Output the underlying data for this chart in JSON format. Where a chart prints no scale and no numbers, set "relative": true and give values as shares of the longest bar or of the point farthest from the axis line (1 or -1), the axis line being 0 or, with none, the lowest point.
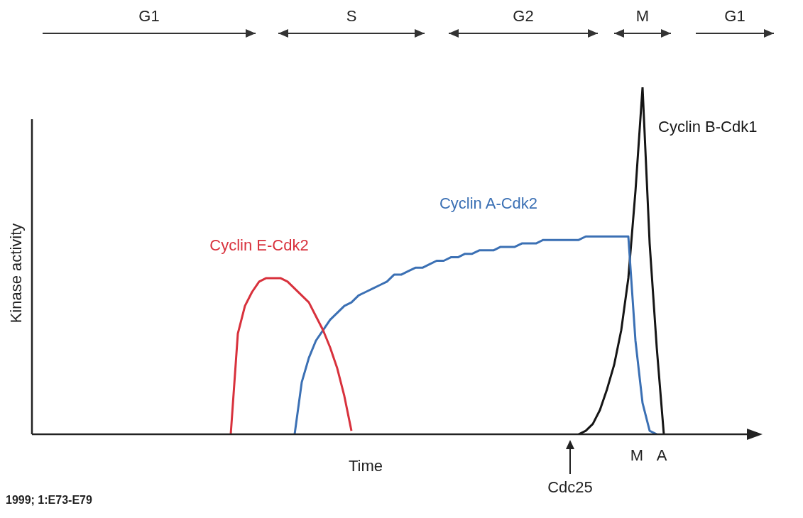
{
  "chart_data": {
    "type": "line",
    "relative": true,
    "xlabel": "Time",
    "ylabel": "Kinase activity",
    "legend": false,
    "tick_labels": false,
    "categories": [
      null,
      null,
      null,
      null,
      null,
      null,
      null,
      null,
      null,
      null,
      null,
      null,
      null,
      null,
      null,
      null,
      null,
      null,
      null,
      null,
      null,
      null,
      null,
      null,
      null,
      null,
      null,
      null,
      null,
      null,
      null,
      null,
      null,
      null,
      null,
      null,
      null,
      null,
      null,
      null,
      null,
      null,
      null,
      null,
      null,
      null,
      null,
      null,
      null,
      null,
      null,
      null,
      null,
      null,
      null,
      null,
      null,
      null,
      null,
      null,
      null,
      null,
      null,
      null,
      null,
      null,
      null,
      null,
      null,
      null,
      null,
      null,
      null,
      null,
      null,
      null,
      null,
      null,
      null,
      null,
      null,
      null,
      null,
      null,
      null,
      null,
      null,
      null,
      null,
      null,
      null,
      null,
      null,
      null,
      null,
      null,
      null,
      null,
      null,
      null,
      null
    ],
    "series": [
      {
        "name": "Cyclin E-Cdk2",
        "color": "#d8313c",
        "values": [
          null,
          null,
          null,
          null,
          null,
          null,
          null,
          null,
          null,
          null,
          null,
          null,
          null,
          null,
          null,
          null,
          null,
          null,
          null,
          null,
          null,
          null,
          null,
          null,
          null,
          null,
          null,
          null,
          0,
          0.29,
          0.37,
          0.41,
          0.44,
          0.45,
          0.45,
          0.45,
          0.44,
          0.42,
          0.4,
          0.38,
          0.34,
          0.3,
          0.25,
          0.19,
          0.11,
          0.01,
          null,
          null,
          null,
          null,
          null,
          null,
          null,
          null,
          null,
          null,
          null,
          null,
          null,
          null,
          null,
          null,
          null,
          null,
          null,
          null,
          null,
          null,
          null,
          null,
          null,
          null,
          null,
          null,
          null,
          null,
          null,
          null,
          null,
          null,
          null,
          null,
          null,
          null,
          null,
          null,
          null,
          null,
          null,
          null,
          null,
          null,
          null,
          null,
          null,
          null,
          null,
          null,
          null,
          null,
          null
        ]
      },
      {
        "name": "Cyclin A-Cdk2",
        "color": "#3b70b4",
        "values": [
          null,
          null,
          null,
          null,
          null,
          null,
          null,
          null,
          null,
          null,
          null,
          null,
          null,
          null,
          null,
          null,
          null,
          null,
          null,
          null,
          null,
          null,
          null,
          null,
          null,
          null,
          null,
          null,
          null,
          null,
          null,
          null,
          null,
          null,
          null,
          null,
          null,
          0,
          0.15,
          0.22,
          0.27,
          0.3,
          0.33,
          0.35,
          0.37,
          0.38,
          0.4,
          0.41,
          0.42,
          0.43,
          0.44,
          0.46,
          0.46,
          0.47,
          0.48,
          0.48,
          0.49,
          0.5,
          0.5,
          0.51,
          0.51,
          0.52,
          0.52,
          0.53,
          0.53,
          0.53,
          0.54,
          0.54,
          0.54,
          0.55,
          0.55,
          0.55,
          0.56,
          0.56,
          0.56,
          0.56,
          0.56,
          0.56,
          0.57,
          0.57,
          0.57,
          0.57,
          0.57,
          0.57,
          0.57,
          0.27,
          0.09,
          0.01,
          0,
          null,
          null,
          null,
          null,
          null,
          null,
          null,
          null,
          null,
          null,
          null,
          null
        ]
      },
      {
        "name": "Cyclin B-Cdk1",
        "color": "#151515",
        "values": [
          null,
          null,
          null,
          null,
          null,
          null,
          null,
          null,
          null,
          null,
          null,
          null,
          null,
          null,
          null,
          null,
          null,
          null,
          null,
          null,
          null,
          null,
          null,
          null,
          null,
          null,
          null,
          null,
          null,
          null,
          null,
          null,
          null,
          null,
          null,
          null,
          null,
          null,
          null,
          null,
          null,
          null,
          null,
          null,
          null,
          null,
          null,
          null,
          null,
          null,
          null,
          null,
          null,
          null,
          null,
          null,
          null,
          null,
          null,
          null,
          null,
          null,
          null,
          null,
          null,
          null,
          null,
          null,
          null,
          null,
          null,
          null,
          null,
          null,
          null,
          null,
          null,
          0,
          0.01,
          0.03,
          0.07,
          0.13,
          0.2,
          0.3,
          0.45,
          0.7,
          1,
          0.55,
          0.25,
          0,
          null,
          null,
          null,
          null,
          null,
          null,
          null,
          null,
          null,
          null,
          null
        ]
      }
    ],
    "annotations": [
      "G1",
      "S",
      "G2",
      "M",
      "G1",
      "Cdc25",
      "M",
      "A",
      "1999; 1:E73-E79"
    ]
  }
}
